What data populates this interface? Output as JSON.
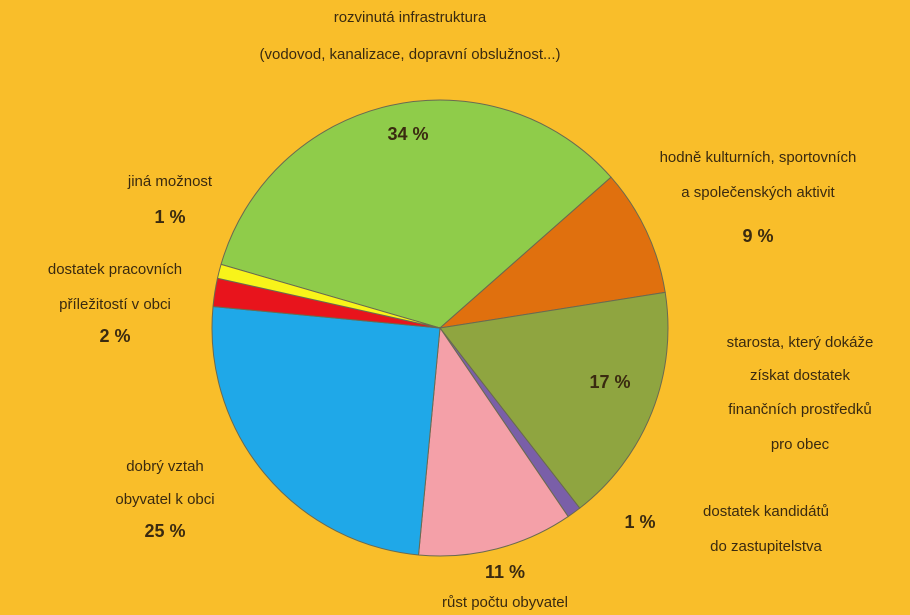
{
  "chart_data": {
    "type": "pie",
    "categories": [
      [
        "rozvinutá infrastruktura",
        "(vodovod, kanalizace, dopravní obslužnost...)"
      ],
      [
        "hodně kulturních, sportovních",
        "a společenských aktivit"
      ],
      [
        "starosta, který dokáže",
        "získat dostatek",
        "finančních prostředků",
        "pro obec"
      ],
      [
        "dostatek kandidátů",
        "do zastupitelstva"
      ],
      [
        "růst počtu obyvatel"
      ],
      [
        "dobrý vztah",
        "obyvatel k obci"
      ],
      [
        "dostatek pracovních",
        "příležitostí v obci"
      ],
      [
        "jiná možnost"
      ]
    ],
    "values": [
      34,
      9,
      17,
      1,
      11,
      25,
      2,
      1
    ],
    "value_labels": [
      "34 %",
      "9 %",
      "17 %",
      "1 %",
      "11 %",
      "25 %",
      "2 %",
      "1 %"
    ],
    "colors": [
      "#8fcc4a",
      "#e0700e",
      "#8fa540",
      "#7a5fa8",
      "#f4a0a8",
      "#1fa8e8",
      "#e8141c",
      "#f8f41a"
    ]
  }
}
